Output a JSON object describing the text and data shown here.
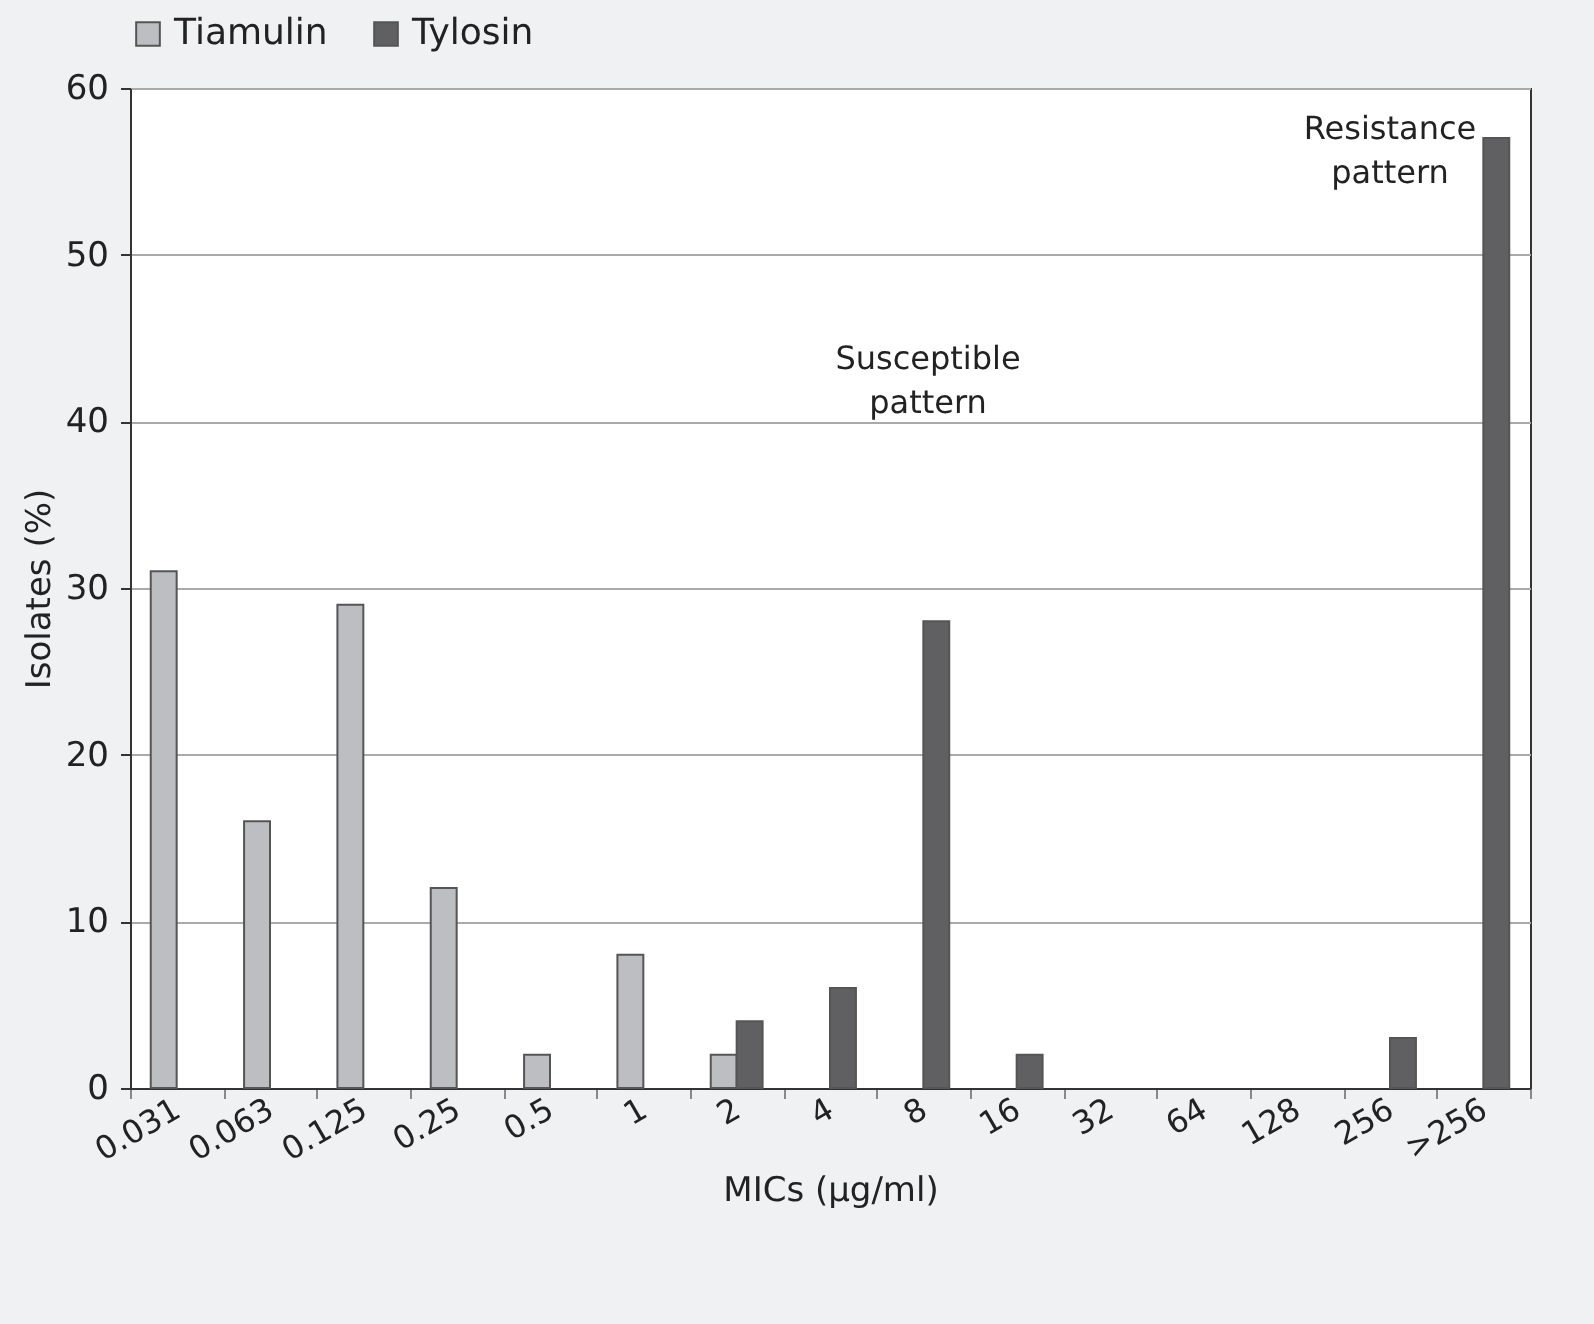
{
  "chart_data": {
    "type": "bar",
    "xlabel": "MICs (µg/ml)",
    "ylabel": "Isolates (%)",
    "categories": [
      "0.031",
      "0.063",
      "0.125",
      "0.25",
      "0.5",
      "1",
      "2",
      "4",
      "8",
      "16",
      "32",
      "64",
      "128",
      "256",
      ">256"
    ],
    "series": [
      {
        "name": "Tiamulin",
        "color": "#bdbec2",
        "values": [
          31,
          16,
          29,
          12,
          2,
          8,
          2,
          null,
          null,
          null,
          null,
          null,
          null,
          null,
          null
        ]
      },
      {
        "name": "Tylosin",
        "color": "#606062",
        "values": [
          null,
          null,
          null,
          null,
          null,
          null,
          4,
          6,
          28,
          2,
          null,
          null,
          null,
          3,
          57
        ]
      }
    ],
    "ylim": [
      0,
      60
    ],
    "yticks": [
      0,
      10,
      20,
      30,
      40,
      50,
      60
    ],
    "grid": "y",
    "legend": "top",
    "annotations": [
      "Susceptible pattern",
      "Resistance pattern"
    ]
  }
}
